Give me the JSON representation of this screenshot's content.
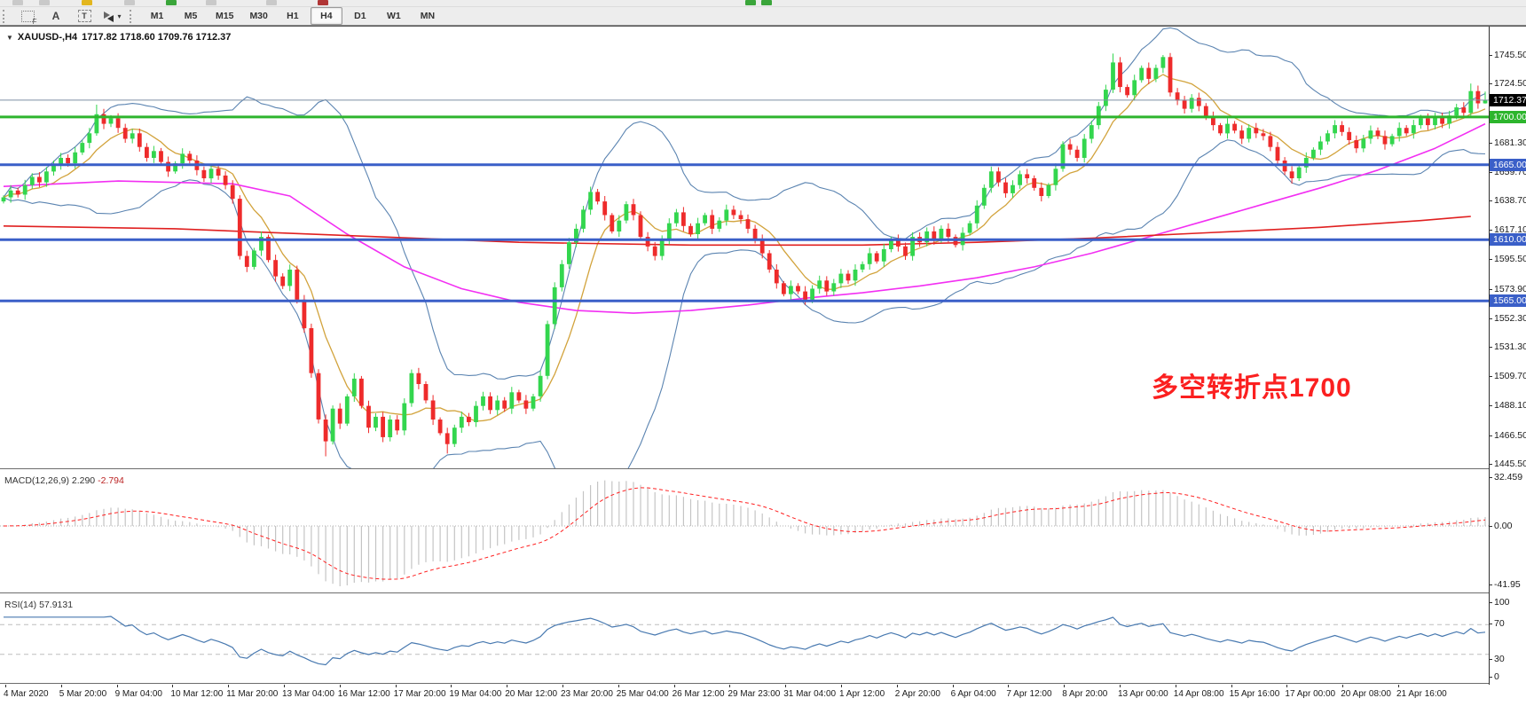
{
  "toolbar": {
    "tools": [
      {
        "name": "dotted-box-f-tool",
        "label": "F"
      },
      {
        "name": "text-label-tool",
        "label": "A"
      },
      {
        "name": "text-box-tool",
        "label": "T"
      },
      {
        "name": "arrows-tool",
        "label": ""
      }
    ],
    "timeframes": [
      {
        "label": "M1",
        "active": false
      },
      {
        "label": "M5",
        "active": false
      },
      {
        "label": "M15",
        "active": false
      },
      {
        "label": "M30",
        "active": false
      },
      {
        "label": "H1",
        "active": false
      },
      {
        "label": "H4",
        "active": true
      },
      {
        "label": "D1",
        "active": false
      },
      {
        "label": "W1",
        "active": false
      },
      {
        "label": "MN",
        "active": false
      }
    ]
  },
  "chart": {
    "title_symbol": "XAUUSD-,H4",
    "title_ohlc": "1717.82 1718.60 1709.76 1712.37"
  },
  "annotation": {
    "text": "多空转折点1700",
    "color": "#fb2020"
  },
  "chart_data": {
    "type": "candlestick",
    "symbol": "XAUUSD-",
    "timeframe": "H4",
    "title_ohlc": {
      "open": 1717.82,
      "high": 1718.6,
      "low": 1709.76,
      "close": 1712.37
    },
    "up_color": "#33d64e",
    "down_color": "#ee2b2b",
    "first_open": 1638,
    "closes": [
      1641,
      1646,
      1643,
      1650,
      1656,
      1652,
      1660,
      1665,
      1670,
      1666,
      1674,
      1681,
      1688,
      1702,
      1695,
      1699,
      1692,
      1684,
      1688,
      1678,
      1670,
      1675,
      1667,
      1660,
      1666,
      1673,
      1668,
      1661,
      1655,
      1662,
      1657,
      1650,
      1640,
      1598,
      1590,
      1602,
      1612,
      1595,
      1583,
      1576,
      1588,
      1566,
      1545,
      1512,
      1478,
      1462,
      1486,
      1475,
      1495,
      1508,
      1488,
      1472,
      1480,
      1465,
      1478,
      1470,
      1490,
      1512,
      1504,
      1492,
      1478,
      1468,
      1460,
      1472,
      1480,
      1476,
      1488,
      1495,
      1485,
      1492,
      1486,
      1498,
      1492,
      1486,
      1495,
      1510,
      1548,
      1575,
      1592,
      1608,
      1618,
      1632,
      1645,
      1638,
      1628,
      1616,
      1624,
      1636,
      1628,
      1612,
      1605,
      1598,
      1610,
      1622,
      1630,
      1620,
      1614,
      1622,
      1628,
      1618,
      1624,
      1632,
      1628,
      1625,
      1618,
      1610,
      1600,
      1588,
      1578,
      1570,
      1576,
      1572,
      1566,
      1574,
      1580,
      1572,
      1578,
      1585,
      1580,
      1588,
      1592,
      1600,
      1594,
      1603,
      1610,
      1605,
      1598,
      1612,
      1608,
      1616,
      1610,
      1618,
      1612,
      1606,
      1615,
      1622,
      1635,
      1648,
      1660,
      1652,
      1644,
      1650,
      1658,
      1655,
      1648,
      1642,
      1650,
      1662,
      1680,
      1676,
      1670,
      1684,
      1694,
      1708,
      1720,
      1740,
      1722,
      1716,
      1727,
      1736,
      1728,
      1736,
      1744,
      1718,
      1712,
      1706,
      1714,
      1708,
      1700,
      1694,
      1688,
      1695,
      1690,
      1684,
      1692,
      1688,
      1686,
      1678,
      1668,
      1660,
      1655,
      1663,
      1670,
      1676,
      1682,
      1688,
      1694,
      1689,
      1683,
      1677,
      1684,
      1690,
      1686,
      1680,
      1686,
      1692,
      1688,
      1694,
      1699,
      1694,
      1700,
      1695,
      1701,
      1707,
      1703,
      1719,
      1710,
      1712.37
    ],
    "wick_overrides": {
      "13": {
        "high": 1709
      },
      "45": {
        "low": 1451
      },
      "62": {
        "low": 1453
      },
      "155": {
        "high": 1746.5
      },
      "162": {
        "high": 1745.5
      },
      "205": {
        "high": 1724.5
      },
      "207": {
        "high": 1718.6,
        "low": 1709.76
      }
    },
    "y_axis": {
      "top_price": 1766.3,
      "bottom_price": 1442.2,
      "labels": [
        {
          "text": "1745.50",
          "price": 1745.5
        },
        {
          "text": "1724.50",
          "price": 1724.5
        },
        {
          "text": "1681.30",
          "price": 1681.3
        },
        {
          "text": "1659.70",
          "price": 1659.7
        },
        {
          "text": "1638.70",
          "price": 1638.7
        },
        {
          "text": "1617.10",
          "price": 1617.1
        },
        {
          "text": "1595.50",
          "price": 1595.5
        },
        {
          "text": "1573.90",
          "price": 1573.9
        },
        {
          "text": "1552.30",
          "price": 1552.3
        },
        {
          "text": "1531.30",
          "price": 1531.3
        },
        {
          "text": "1509.70",
          "price": 1509.7
        },
        {
          "text": "1488.10",
          "price": 1488.1
        },
        {
          "text": "1466.50",
          "price": 1466.5
        },
        {
          "text": "1445.50",
          "price": 1445.5
        }
      ],
      "badges": [
        {
          "text": "1712.37",
          "price": 1712.37,
          "bg": "#000000"
        },
        {
          "text": "1700.00",
          "price": 1700,
          "bg": "#2db52d"
        },
        {
          "text": "1665.00",
          "price": 1665,
          "bg": "#3a5fc8"
        },
        {
          "text": "1610.00",
          "price": 1610,
          "bg": "#3a5fc8"
        },
        {
          "text": "1565.00",
          "price": 1565,
          "bg": "#3a5fc8"
        }
      ]
    },
    "hlines": [
      {
        "name": "bid-line",
        "price": 1712.37,
        "color": "#7d8fa3",
        "width": 1
      },
      {
        "name": "level-1700",
        "price": 1700,
        "color": "#2db52d",
        "width": 3
      },
      {
        "name": "level-1665",
        "price": 1665,
        "color": "#3a5fc8",
        "width": 3
      },
      {
        "name": "level-1610",
        "price": 1610,
        "color": "#3a5fc8",
        "width": 3
      },
      {
        "name": "level-1565",
        "price": 1565,
        "color": "#3a5fc8",
        "width": 3
      }
    ],
    "indicators": {
      "bollinger": {
        "period": 20,
        "deviation": 2,
        "color": "#5b84b1"
      },
      "ma_fast": {
        "period": 8,
        "color": "#d2a33c"
      },
      "ma_magenta": {
        "color": "#f22ff2",
        "points": [
          [
            0,
            1649
          ],
          [
            16,
            1653
          ],
          [
            32,
            1651
          ],
          [
            40,
            1642
          ],
          [
            48,
            1614
          ],
          [
            56,
            1590
          ],
          [
            64,
            1574
          ],
          [
            72,
            1564
          ],
          [
            80,
            1558
          ],
          [
            88,
            1556
          ],
          [
            96,
            1558
          ],
          [
            104,
            1562
          ],
          [
            112,
            1567
          ],
          [
            120,
            1571
          ],
          [
            128,
            1576
          ],
          [
            136,
            1582
          ],
          [
            144,
            1590
          ],
          [
            152,
            1600
          ],
          [
            160,
            1612
          ],
          [
            168,
            1624
          ],
          [
            176,
            1636
          ],
          [
            184,
            1648
          ],
          [
            192,
            1661
          ],
          [
            200,
            1677
          ],
          [
            207,
            1695
          ]
        ]
      },
      "ma_slow_red": {
        "color": "#e02020",
        "points": [
          [
            0,
            1620
          ],
          [
            24,
            1618
          ],
          [
            48,
            1613
          ],
          [
            72,
            1608
          ],
          [
            96,
            1606
          ],
          [
            120,
            1606
          ],
          [
            136,
            1608
          ],
          [
            152,
            1611
          ],
          [
            168,
            1615
          ],
          [
            184,
            1619
          ],
          [
            198,
            1624
          ],
          [
            205,
            1627
          ]
        ]
      },
      "macd": {
        "label": "MACD(12,26,9)",
        "value": "2.290",
        "signal": "-2.794",
        "axis_labels": [
          "32.459",
          "0.00",
          "-41.95"
        ],
        "hist_color": "#c4c4c4",
        "signal_color": "#ff2020"
      },
      "rsi": {
        "label": "RSI(14)",
        "value": "57.9131",
        "axis_labels": [
          "100",
          "70",
          "30",
          "0"
        ],
        "color": "#4879b0",
        "levels": [
          70,
          30
        ]
      }
    },
    "time_labels": [
      "4 Mar 2020",
      "5 Mar 20:00",
      "9 Mar 04:00",
      "10 Mar 12:00",
      "11 Mar 20:00",
      "13 Mar 04:00",
      "16 Mar 12:00",
      "17 Mar 20:00",
      "19 Mar 04:00",
      "20 Mar 12:00",
      "23 Mar 20:00",
      "25 Mar 04:00",
      "26 Mar 12:00",
      "29 Mar 23:00",
      "31 Mar 04:00",
      "1 Apr 12:00",
      "2 Apr 20:00",
      "6 Apr 04:00",
      "7 Apr 12:00",
      "8 Apr 20:00",
      "13 Apr 00:00",
      "14 Apr 08:00",
      "15 Apr 16:00",
      "17 Apr 00:00",
      "20 Apr 08:00",
      "21 Apr 16:00"
    ]
  }
}
